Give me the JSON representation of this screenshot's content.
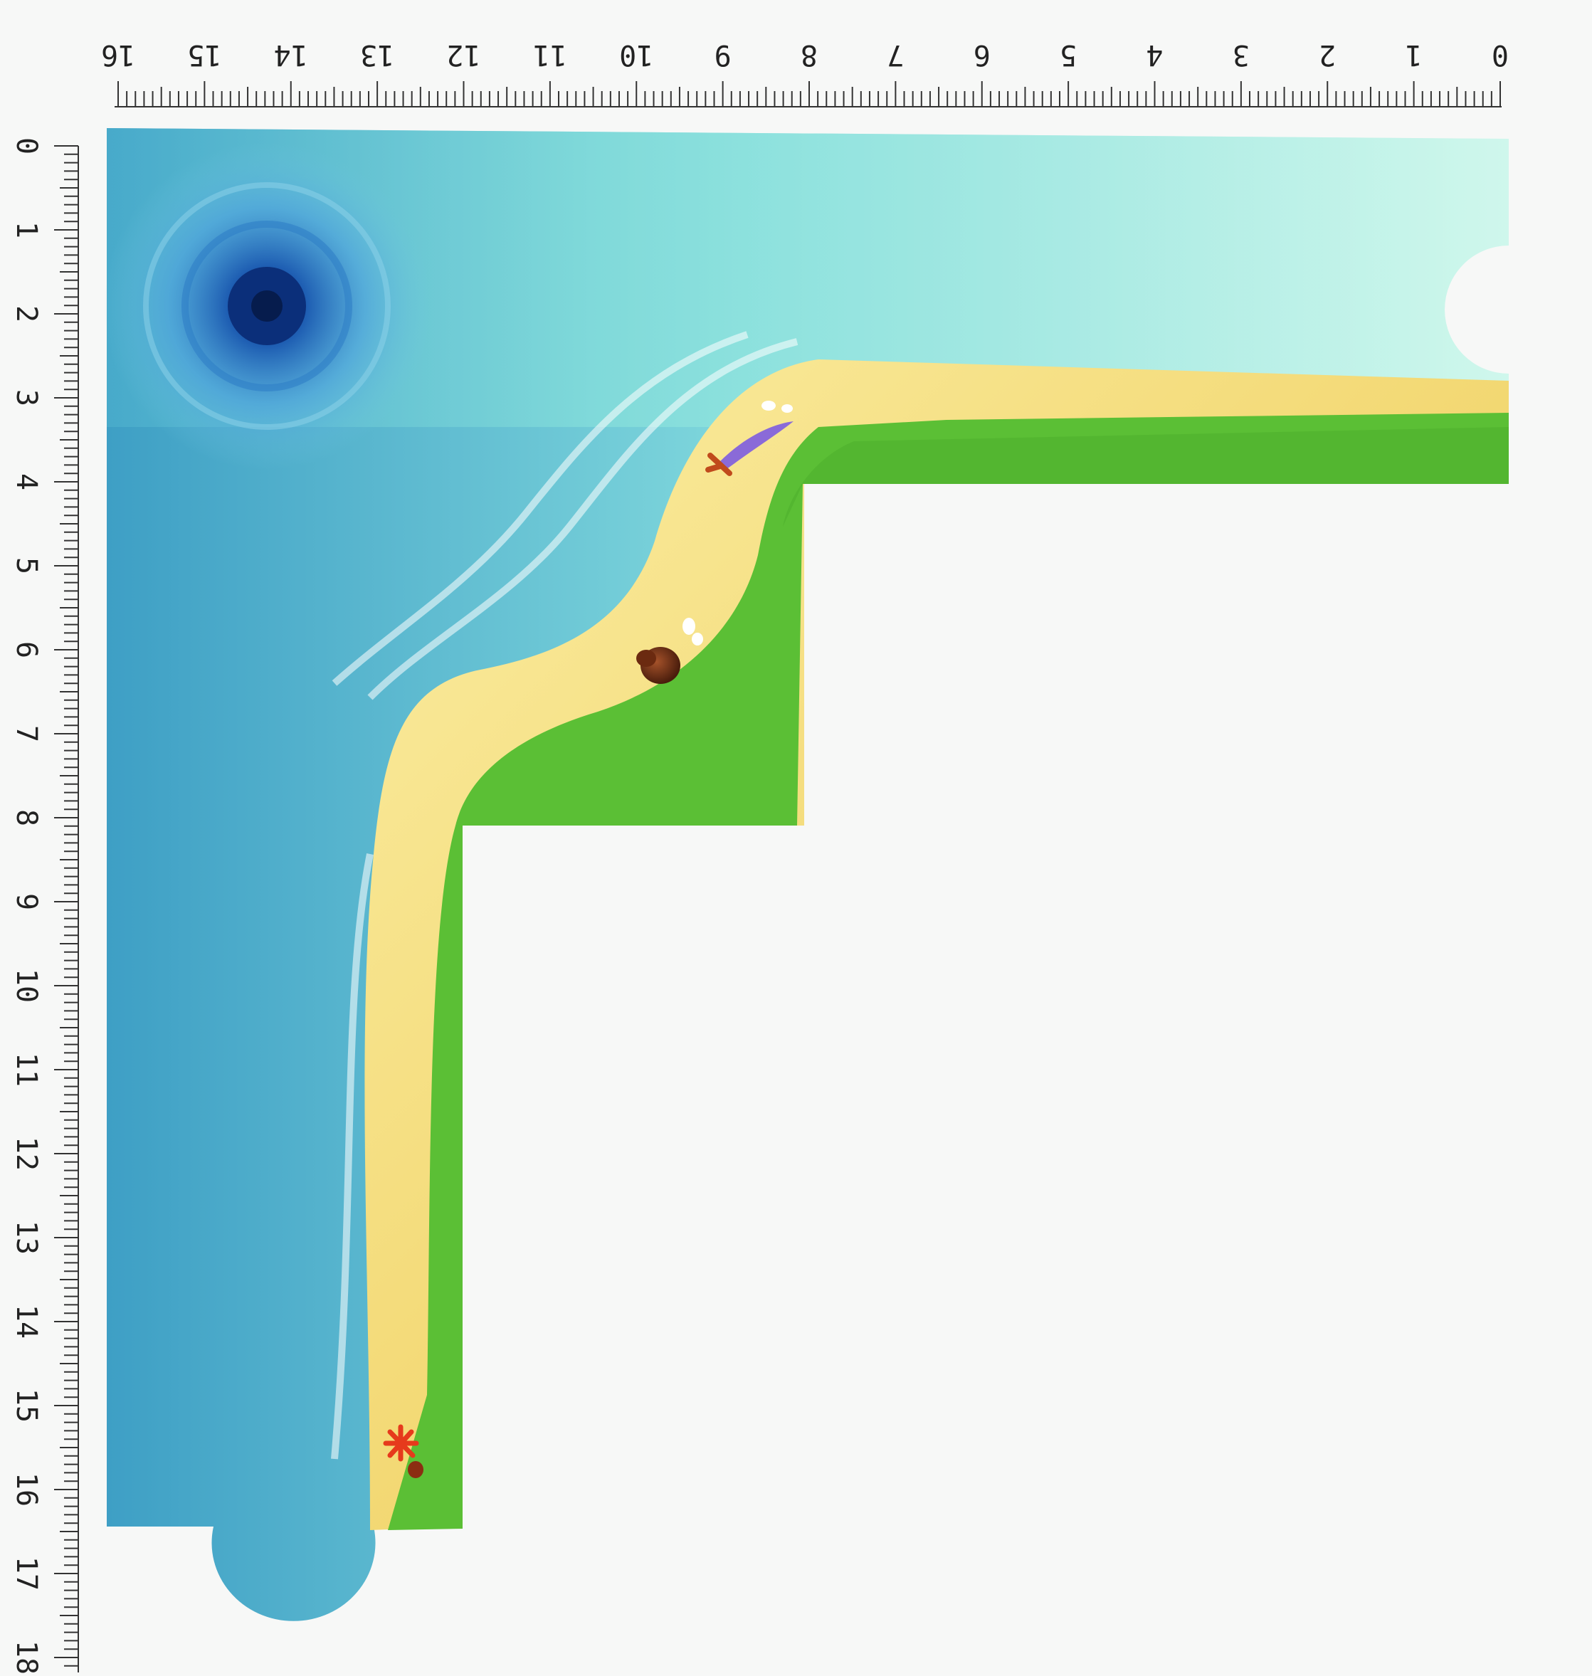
{
  "ruler_top": {
    "labels": [
      "16",
      "15",
      "14",
      "13",
      "12",
      "11",
      "10",
      "9",
      "8",
      "7",
      "6",
      "5",
      "4",
      "3",
      "2",
      "1",
      "0"
    ]
  },
  "ruler_left": {
    "labels": [
      "0",
      "1",
      "2",
      "3",
      "4",
      "5",
      "6",
      "7",
      "8",
      "9",
      "10",
      "11",
      "12",
      "13",
      "14",
      "15",
      "16",
      "17",
      "18"
    ]
  },
  "board": {
    "name": "L-shaped game board tile",
    "colors": {
      "deep_water": "#1a5aa8",
      "water": "#5fc6d8",
      "shallow": "#bff2ea",
      "sand": "#f2d873",
      "grass": "#5bbf35"
    },
    "pieces": [
      {
        "icon": "whirlpool-icon"
      },
      {
        "icon": "sword-icon"
      },
      {
        "icon": "shell-icon"
      },
      {
        "icon": "starfish-icon"
      },
      {
        "icon": "pebble-icon"
      }
    ]
  }
}
